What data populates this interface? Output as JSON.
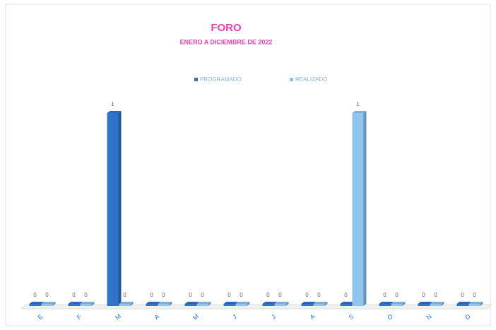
{
  "chart_data": {
    "type": "bar3d",
    "title": "FORO",
    "subtitle": "ENERO A DICIEMBRE DE 2022",
    "categories": [
      "E",
      "F",
      "M",
      "A",
      "M",
      "J",
      "J",
      "A",
      "S",
      "O",
      "N",
      "D"
    ],
    "series": [
      {
        "name": "PROGRAMADO",
        "color": "#2e75c9",
        "values": [
          0,
          0,
          1,
          0,
          0,
          0,
          0,
          0,
          0,
          0,
          0,
          0
        ]
      },
      {
        "name": "REALIZADO",
        "color": "#8ec4ee",
        "values": [
          0,
          0,
          0,
          0,
          0,
          0,
          0,
          0,
          1,
          0,
          0,
          0
        ]
      }
    ],
    "legend": "top"
  }
}
